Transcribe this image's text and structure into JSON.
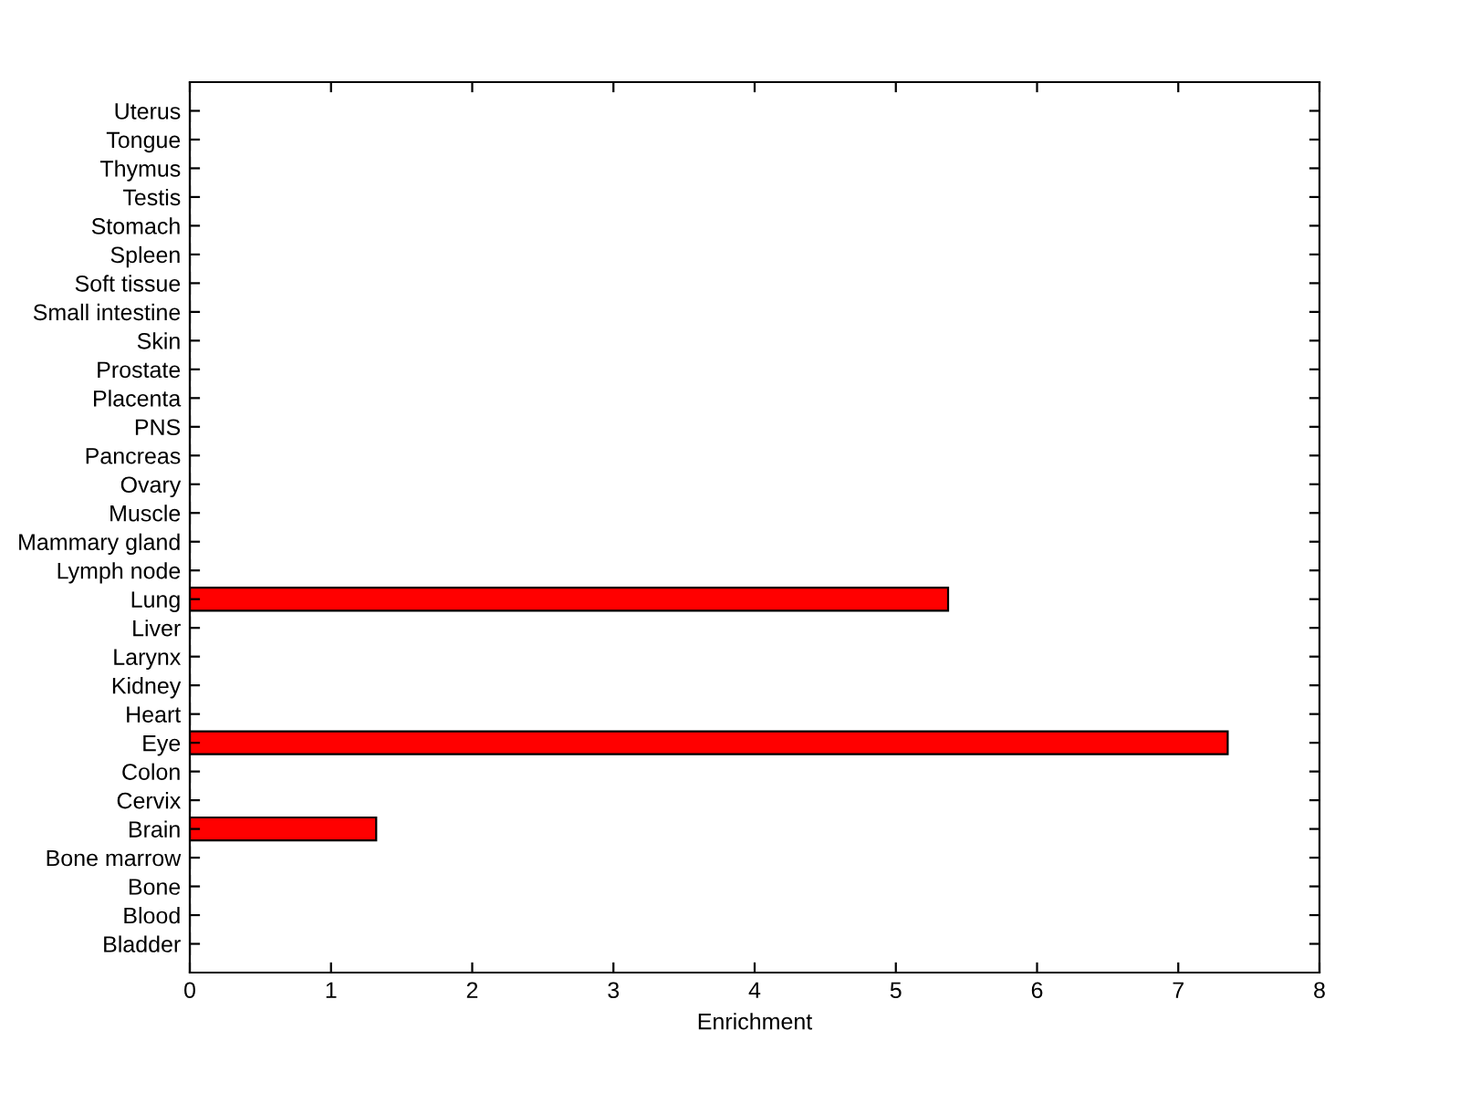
{
  "chart_data": {
    "type": "bar",
    "orientation": "horizontal",
    "xlabel": "Enrichment",
    "categories": [
      "Uterus",
      "Tongue",
      "Thymus",
      "Testis",
      "Stomach",
      "Spleen",
      "Soft tissue",
      "Small intestine",
      "Skin",
      "Prostate",
      "Placenta",
      "PNS",
      "Pancreas",
      "Ovary",
      "Muscle",
      "Mammary gland",
      "Lymph node",
      "Lung",
      "Liver",
      "Larynx",
      "Kidney",
      "Heart",
      "Eye",
      "Colon",
      "Cervix",
      "Brain",
      "Bone marrow",
      "Bone",
      "Blood",
      "Bladder"
    ],
    "values": [
      0,
      0,
      0,
      0,
      0,
      0,
      0,
      0,
      0,
      0,
      0,
      0,
      0,
      0,
      0,
      0,
      0,
      5.37,
      0,
      0,
      0,
      0,
      7.35,
      0,
      0,
      1.32,
      0,
      0,
      0,
      0
    ],
    "color": "#ff0000",
    "xlim": [
      0,
      8
    ],
    "xticks": [
      0,
      1,
      2,
      3,
      4,
      5,
      6,
      7,
      8
    ],
    "grid": false,
    "legend": false
  }
}
